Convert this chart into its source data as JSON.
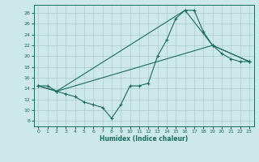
{
  "title": "",
  "xlabel": "Humidex (Indice chaleur)",
  "ylabel": "",
  "bg_color": "#cce8e8",
  "grid_color": "#aacccc",
  "line_color": "#1a6b60",
  "xlim": [
    -0.5,
    23.5
  ],
  "ylim": [
    7,
    29.5
  ],
  "yticks": [
    8,
    10,
    12,
    14,
    16,
    18,
    20,
    22,
    24,
    26,
    28
  ],
  "xticks": [
    0,
    1,
    2,
    3,
    4,
    5,
    6,
    7,
    8,
    9,
    10,
    11,
    12,
    13,
    14,
    15,
    16,
    17,
    18,
    19,
    20,
    21,
    22,
    23
  ],
  "line1_x": [
    0,
    1,
    2,
    3,
    4,
    5,
    6,
    7,
    8,
    9,
    10,
    11,
    12,
    13,
    14,
    15,
    16,
    17,
    18,
    19,
    20,
    21,
    22,
    23
  ],
  "line1_y": [
    14.5,
    14.5,
    13.5,
    13,
    12.5,
    11.5,
    11,
    10.5,
    8.5,
    11,
    14.5,
    14.5,
    15,
    20,
    23,
    27,
    28.5,
    28.5,
    24.5,
    22,
    20.5,
    19.5,
    19,
    19
  ],
  "line2_x": [
    0,
    2,
    16,
    19,
    23
  ],
  "line2_y": [
    14.5,
    13.5,
    28.5,
    22,
    19
  ],
  "line3_x": [
    0,
    2,
    19,
    23
  ],
  "line3_y": [
    14.5,
    13.5,
    22,
    19
  ],
  "figsize": [
    3.2,
    2.0
  ],
  "dpi": 100
}
